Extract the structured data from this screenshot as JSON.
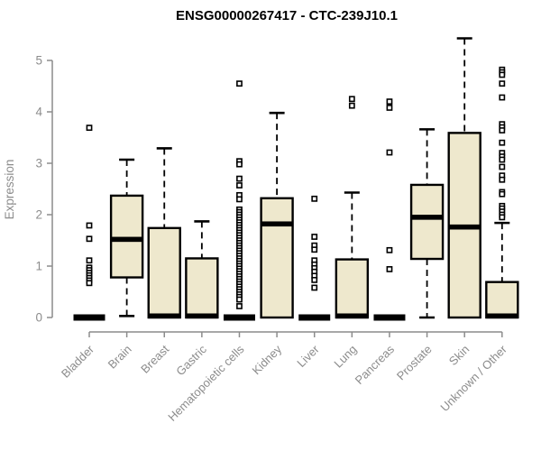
{
  "figure": {
    "title": "ENSG00000267417 - CTC-239J10.1"
  },
  "chart_data": {
    "type": "boxplot",
    "title": "ENSG00000267417 - CTC-239J10.1",
    "xlabel": "",
    "ylabel": "Expression",
    "ylim": [
      0,
      5
    ],
    "yticks": [
      0,
      1,
      2,
      3,
      4,
      5
    ],
    "grid": false,
    "legend": false,
    "colors": {
      "box_fill": "#EEE8CD",
      "box_stroke": "#000000",
      "median": "#000000",
      "whisker": "#000000",
      "outlier_stroke": "#000000",
      "outlier_fill": "#FFFFFF",
      "axis": "#8c8c8c",
      "tick_label": "#8c8c8c",
      "title": "#000000",
      "background": "#FFFFFF"
    },
    "categories": [
      "Bladder",
      "Brain",
      "Breast",
      "Gastric",
      "Hematopoietic cells",
      "Kidney",
      "Liver",
      "Lung",
      "Pancreas",
      "Prostate",
      "Skin",
      "Unknown / Other"
    ],
    "series": [
      {
        "category": "Bladder",
        "low": 0,
        "q1": 0,
        "median": 0,
        "q3": 0,
        "high": 0,
        "outliers": [
          3.69,
          1.79,
          1.53,
          1.11,
          0.97,
          0.92,
          0.87,
          0.82,
          0.77,
          0.72,
          0.67
        ]
      },
      {
        "category": "Brain",
        "low": 0.03,
        "q1": 0.78,
        "median": 1.52,
        "q3": 2.37,
        "high": 3.07,
        "outliers": []
      },
      {
        "category": "Breast",
        "low": 0,
        "q1": 0,
        "median": 0.03,
        "q3": 1.74,
        "high": 3.29,
        "outliers": []
      },
      {
        "category": "Gastric",
        "low": 0,
        "q1": 0,
        "median": 0.03,
        "q3": 1.15,
        "high": 1.87,
        "outliers": []
      },
      {
        "category": "Hematopoietic cells",
        "low": 0,
        "q1": 0,
        "median": 0,
        "q3": 0,
        "high": 0,
        "outliers": [
          4.55,
          3.04,
          2.98,
          2.7,
          2.57,
          2.38,
          2.3,
          2.1,
          2.05,
          2.0,
          1.95,
          1.9,
          1.85,
          1.8,
          1.75,
          1.7,
          1.65,
          1.6,
          1.55,
          1.5,
          1.45,
          1.4,
          1.35,
          1.3,
          1.25,
          1.2,
          1.15,
          1.1,
          1.05,
          1.0,
          0.95,
          0.9,
          0.85,
          0.8,
          0.75,
          0.7,
          0.65,
          0.6,
          0.55,
          0.5,
          0.45,
          0.4,
          0.35,
          0.22
        ]
      },
      {
        "category": "Kidney",
        "low": 0,
        "q1": 0,
        "median": 1.82,
        "q3": 2.32,
        "high": 3.98,
        "outliers": []
      },
      {
        "category": "Liver",
        "low": 0,
        "q1": 0,
        "median": 0,
        "q3": 0,
        "high": 0,
        "outliers": [
          2.31,
          1.57,
          1.4,
          1.32,
          1.11,
          1.03,
          0.96,
          0.89,
          0.81,
          0.73,
          0.58
        ]
      },
      {
        "category": "Lung",
        "low": 0,
        "q1": 0,
        "median": 0.03,
        "q3": 1.13,
        "high": 2.43,
        "outliers": [
          4.25,
          4.12
        ]
      },
      {
        "category": "Pancreas",
        "low": 0,
        "q1": 0,
        "median": 0,
        "q3": 0,
        "high": 0,
        "outliers": [
          4.2,
          4.08,
          3.21,
          1.31,
          0.94
        ]
      },
      {
        "category": "Prostate",
        "low": 0,
        "q1": 1.14,
        "median": 1.95,
        "q3": 2.58,
        "high": 3.66,
        "outliers": []
      },
      {
        "category": "Skin",
        "low": 0,
        "q1": 0,
        "median": 1.76,
        "q3": 3.59,
        "high": 5.43,
        "outliers": []
      },
      {
        "category": "Unknown / Other",
        "low": 0,
        "q1": 0,
        "median": 0.03,
        "q3": 0.69,
        "high": 1.84,
        "outliers": [
          4.82,
          4.77,
          4.72,
          4.55,
          4.28,
          3.76,
          3.7,
          3.64,
          3.4,
          3.2,
          3.13,
          3.07,
          2.93,
          2.76,
          2.68,
          2.44,
          2.4,
          2.17,
          2.12,
          2.06,
          2.0,
          1.95
        ]
      }
    ]
  }
}
